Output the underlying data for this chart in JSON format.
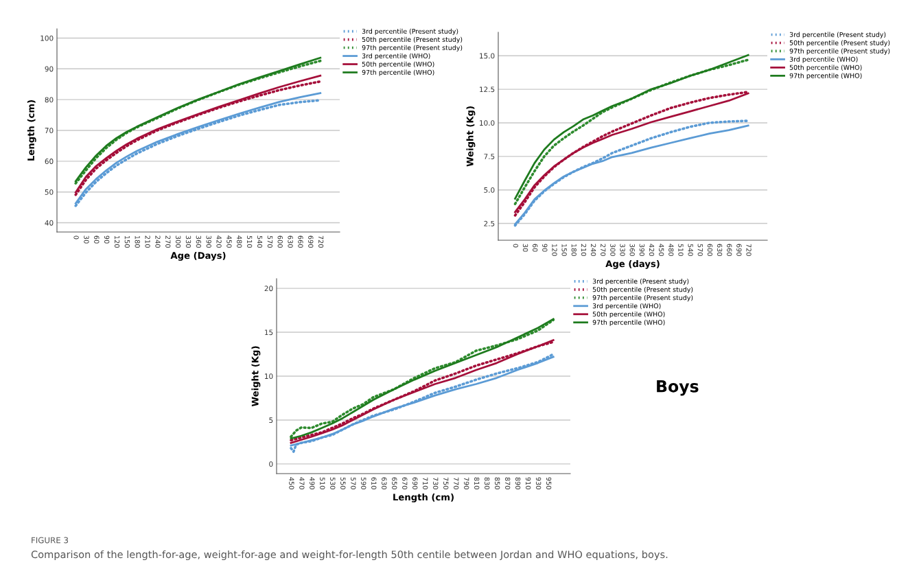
{
  "chart_data": [
    {
      "type": "line",
      "xlabel": "Age (Days)",
      "ylabel": "Length (cm)",
      "xlim": [
        -55,
        777
      ],
      "ylim": [
        37,
        103
      ],
      "xticks": [
        0,
        30,
        60,
        90,
        120,
        150,
        180,
        210,
        240,
        270,
        300,
        330,
        360,
        390,
        420,
        450,
        480,
        510,
        540,
        570,
        600,
        630,
        660,
        690,
        720
      ],
      "yticks": [
        40,
        50,
        60,
        70,
        80,
        90,
        100
      ],
      "grid": "y",
      "legend": "top right",
      "marker": "none",
      "series": [
        {
          "name": "3rd percentile (Present study)",
          "color": "#5b9bd5",
          "line_style": "dotted",
          "x": [
            0,
            30,
            60,
            90,
            120,
            150,
            180,
            240,
            300,
            360,
            420,
            480,
            540,
            600,
            660,
            720
          ],
          "values": [
            45.5,
            49.8,
            53.3,
            56.1,
            58.6,
            60.6,
            62.5,
            65.6,
            68.2,
            70.5,
            72.7,
            74.8,
            76.6,
            78.3,
            79.2,
            79.8
          ]
        },
        {
          "name": "50th percentile (Present study)",
          "color": "#a50f3a",
          "line_style": "dotted",
          "x": [
            0,
            30,
            60,
            90,
            120,
            150,
            180,
            240,
            300,
            360,
            420,
            480,
            540,
            600,
            660,
            720
          ],
          "values": [
            49.1,
            53.9,
            57.6,
            60.3,
            62.7,
            64.9,
            66.8,
            70,
            72.6,
            75,
            77.3,
            79.4,
            81.3,
            83.1,
            84.6,
            85.9
          ]
        },
        {
          "name": "97th percentile (Present study)",
          "color": "#2e8b2e",
          "line_style": "dotted",
          "x": [
            0,
            30,
            60,
            90,
            120,
            150,
            180,
            240,
            300,
            360,
            420,
            480,
            540,
            600,
            660,
            720
          ],
          "values": [
            52.8,
            57,
            61,
            64.3,
            67,
            69.2,
            71,
            74,
            77.1,
            79.9,
            82.4,
            84.8,
            86.9,
            88.9,
            90.8,
            92.6
          ]
        },
        {
          "name": "3rd percentile (WHO)",
          "color": "#5b9bd5",
          "line_style": "solid",
          "x": [
            0,
            30,
            60,
            90,
            120,
            150,
            180,
            240,
            300,
            360,
            420,
            480,
            540,
            600,
            660,
            720
          ],
          "values": [
            46.3,
            50.9,
            54.2,
            57,
            59.5,
            61.5,
            63.3,
            66.3,
            68.8,
            71.1,
            73.3,
            75.4,
            77.4,
            79.3,
            80.8,
            82.1
          ]
        },
        {
          "name": "50th percentile (WHO)",
          "color": "#a50f3a",
          "line_style": "solid",
          "x": [
            0,
            30,
            60,
            90,
            120,
            150,
            180,
            240,
            300,
            360,
            420,
            480,
            540,
            600,
            660,
            720
          ],
          "values": [
            49.9,
            54.9,
            58.4,
            61,
            63.4,
            65.5,
            67.3,
            70.4,
            72.9,
            75.3,
            77.6,
            79.8,
            82,
            84.1,
            86,
            87.8
          ]
        },
        {
          "name": "97th percentile (WHO)",
          "color": "#1e7b1e",
          "line_style": "solid",
          "x": [
            0,
            30,
            60,
            90,
            120,
            150,
            180,
            240,
            300,
            360,
            420,
            480,
            540,
            600,
            660,
            720
          ],
          "values": [
            53.5,
            58,
            61.8,
            65,
            67.5,
            69.5,
            71.2,
            74.3,
            77.3,
            80,
            82.5,
            85,
            87.2,
            89.3,
            91.5,
            93.6
          ]
        }
      ]
    },
    {
      "type": "line",
      "xlabel": "Age (days)",
      "ylabel": "Weight (Kg)",
      "xlim": [
        -52,
        779
      ],
      "ylim": [
        1.25,
        16.75
      ],
      "xticks": [
        0,
        30,
        60,
        90,
        120,
        150,
        180,
        210,
        240,
        270,
        300,
        330,
        360,
        390,
        420,
        450,
        480,
        510,
        540,
        570,
        600,
        630,
        660,
        690,
        720
      ],
      "yticks": [
        2.5,
        {
          "value": 5,
          "label": "5.0"
        },
        7.5,
        {
          "value": 10,
          "label": "10.0"
        },
        12.5,
        {
          "value": 15,
          "label": "15.0"
        }
      ],
      "grid": "y",
      "legend": "top right",
      "marker": "none",
      "series": [
        {
          "name": "3rd percentile (Present study)",
          "color": "#5b9bd5",
          "line_style": "dotted",
          "x": [
            0,
            30,
            60,
            90,
            120,
            150,
            180,
            210,
            240,
            270,
            300,
            360,
            420,
            480,
            540,
            600,
            660,
            720
          ],
          "values": [
            2.35,
            3.2,
            4.2,
            4.9,
            5.45,
            5.95,
            6.35,
            6.7,
            7,
            7.35,
            7.75,
            8.3,
            8.85,
            9.3,
            9.7,
            10,
            10.1,
            10.15
          ]
        },
        {
          "name": "50th percentile (Present study)",
          "color": "#a50f3a",
          "line_style": "dotted",
          "x": [
            0,
            30,
            60,
            90,
            120,
            150,
            180,
            210,
            240,
            270,
            300,
            360,
            420,
            480,
            540,
            600,
            660,
            720
          ],
          "values": [
            3.1,
            4.1,
            5.2,
            6,
            6.7,
            7.25,
            7.75,
            8.2,
            8.6,
            9,
            9.35,
            9.95,
            10.55,
            11.1,
            11.5,
            11.85,
            12.1,
            12.3
          ]
        },
        {
          "name": "97th percentile (Present study)",
          "color": "#2e8b2e",
          "line_style": "dotted",
          "x": [
            0,
            30,
            60,
            90,
            120,
            150,
            180,
            210,
            240,
            270,
            300,
            360,
            420,
            480,
            540,
            600,
            660,
            720
          ],
          "values": [
            3.95,
            5.2,
            6.4,
            7.5,
            8.3,
            8.85,
            9.35,
            9.8,
            10.3,
            10.8,
            11.15,
            11.8,
            12.45,
            13,
            13.5,
            13.95,
            14.3,
            14.7
          ]
        },
        {
          "name": "3rd percentile (WHO)",
          "color": "#5b9bd5",
          "line_style": "solid",
          "x": [
            0,
            30,
            60,
            90,
            120,
            150,
            180,
            210,
            240,
            270,
            300,
            360,
            420,
            480,
            540,
            600,
            660,
            720
          ],
          "values": [
            2.45,
            3.3,
            4.3,
            4.95,
            5.5,
            6,
            6.35,
            6.65,
            6.95,
            7.15,
            7.45,
            7.75,
            8.15,
            8.5,
            8.85,
            9.2,
            9.45,
            9.8
          ]
        },
        {
          "name": "50th percentile (WHO)",
          "color": "#a50f3a",
          "line_style": "solid",
          "x": [
            0,
            30,
            60,
            90,
            120,
            150,
            180,
            210,
            240,
            270,
            300,
            360,
            420,
            480,
            540,
            600,
            660,
            720
          ],
          "values": [
            3.35,
            4.3,
            5.35,
            6.1,
            6.75,
            7.25,
            7.75,
            8.15,
            8.5,
            8.8,
            9.1,
            9.55,
            10.05,
            10.45,
            10.85,
            11.25,
            11.65,
            12.2
          ]
        },
        {
          "name": "97th percentile (WHO)",
          "color": "#1e7b1e",
          "line_style": "solid",
          "x": [
            0,
            30,
            60,
            90,
            120,
            150,
            180,
            210,
            240,
            270,
            300,
            360,
            420,
            480,
            540,
            600,
            660,
            720
          ],
          "values": [
            4.35,
            5.7,
            7,
            8,
            8.75,
            9.3,
            9.75,
            10.25,
            10.55,
            10.9,
            11.25,
            11.8,
            12.5,
            12.95,
            13.5,
            13.95,
            14.5,
            15.05
          ]
        }
      ]
    },
    {
      "type": "line",
      "xlabel": "Length (cm)",
      "ylabel": "Weight (Kg)",
      "xlim": [
        422,
        993
      ],
      "ylim": [
        -1.1,
        21.1
      ],
      "xticks": [
        450,
        470,
        490,
        510,
        530,
        550,
        570,
        590,
        610,
        630,
        650,
        670,
        690,
        710,
        730,
        750,
        770,
        790,
        810,
        830,
        850,
        870,
        890,
        910,
        930,
        950
      ],
      "yticks": [
        0,
        5,
        10,
        15,
        20
      ],
      "grid": "y",
      "legend": "top right",
      "marker": "none",
      "annotations": [
        "Boys",
        "FIGURE 3",
        "Comparison of the length-for-age, weight-for-age and weight-for-length 50th centile between Jordan and WHO equations, boys."
      ],
      "series": [
        {
          "name": "3rd percentile (Present study)",
          "color": "#5b9bd5",
          "line_style": "dotted",
          "x": [
            450,
            455,
            460,
            470,
            490,
            510,
            530,
            550,
            570,
            590,
            610,
            650,
            690,
            730,
            770,
            810,
            850,
            890,
            930,
            960
          ],
          "values": [
            1.8,
            1.4,
            2.2,
            2.4,
            2.6,
            3,
            3.3,
            3.9,
            4.5,
            5,
            5.5,
            6.2,
            7.1,
            8.1,
            8.8,
            9.6,
            10.3,
            10.9,
            11.6,
            12.5
          ]
        },
        {
          "name": "50th percentile (Present study)",
          "color": "#a50f3a",
          "line_style": "dotted",
          "x": [
            450,
            470,
            490,
            510,
            530,
            550,
            570,
            590,
            610,
            650,
            690,
            730,
            770,
            810,
            850,
            890,
            930,
            960
          ],
          "values": [
            2.7,
            3,
            3.3,
            3.6,
            4.1,
            4.6,
            5.2,
            5.7,
            6.3,
            7.3,
            8.3,
            9.5,
            10.3,
            11.2,
            11.9,
            12.6,
            13.4,
            13.9
          ]
        },
        {
          "name": "97th percentile (Present study)",
          "color": "#2e8b2e",
          "line_style": "dotted",
          "x": [
            450,
            460,
            470,
            490,
            510,
            530,
            550,
            570,
            590,
            610,
            650,
            690,
            730,
            770,
            810,
            850,
            890,
            930,
            960
          ],
          "values": [
            3.1,
            3.8,
            4.15,
            4.1,
            4.6,
            4.8,
            5.6,
            6.3,
            6.8,
            7.6,
            8.5,
            9.8,
            10.9,
            11.6,
            12.9,
            13.5,
            14.2,
            15.2,
            16.4
          ]
        },
        {
          "name": "3rd percentile (WHO)",
          "color": "#5b9bd5",
          "line_style": "solid",
          "x": [
            450,
            470,
            490,
            510,
            530,
            550,
            570,
            590,
            610,
            650,
            690,
            730,
            770,
            810,
            850,
            890,
            930,
            960
          ],
          "values": [
            2.1,
            2.4,
            2.7,
            3,
            3.4,
            3.9,
            4.5,
            4.9,
            5.4,
            6.3,
            7,
            7.8,
            8.5,
            9.1,
            9.8,
            10.7,
            11.5,
            12.2
          ]
        },
        {
          "name": "50th percentile (WHO)",
          "color": "#a50f3a",
          "line_style": "solid",
          "x": [
            450,
            470,
            490,
            510,
            530,
            550,
            570,
            590,
            610,
            650,
            690,
            730,
            770,
            810,
            850,
            890,
            930,
            960
          ],
          "values": [
            2.4,
            2.75,
            3.1,
            3.5,
            3.9,
            4.4,
            5,
            5.6,
            6.2,
            7.3,
            8.2,
            9.1,
            9.8,
            10.7,
            11.5,
            12.5,
            13.4,
            14.1
          ]
        },
        {
          "name": "97th percentile (WHO)",
          "color": "#1e7b1e",
          "line_style": "solid",
          "x": [
            450,
            470,
            490,
            510,
            530,
            550,
            570,
            590,
            610,
            650,
            690,
            730,
            770,
            810,
            850,
            890,
            930,
            960
          ],
          "values": [
            2.9,
            3.2,
            3.6,
            4.1,
            4.6,
            5.2,
            5.9,
            6.6,
            7.3,
            8.5,
            9.6,
            10.6,
            11.5,
            12.4,
            13.3,
            14.4,
            15.5,
            16.5
          ]
        }
      ]
    }
  ]
}
